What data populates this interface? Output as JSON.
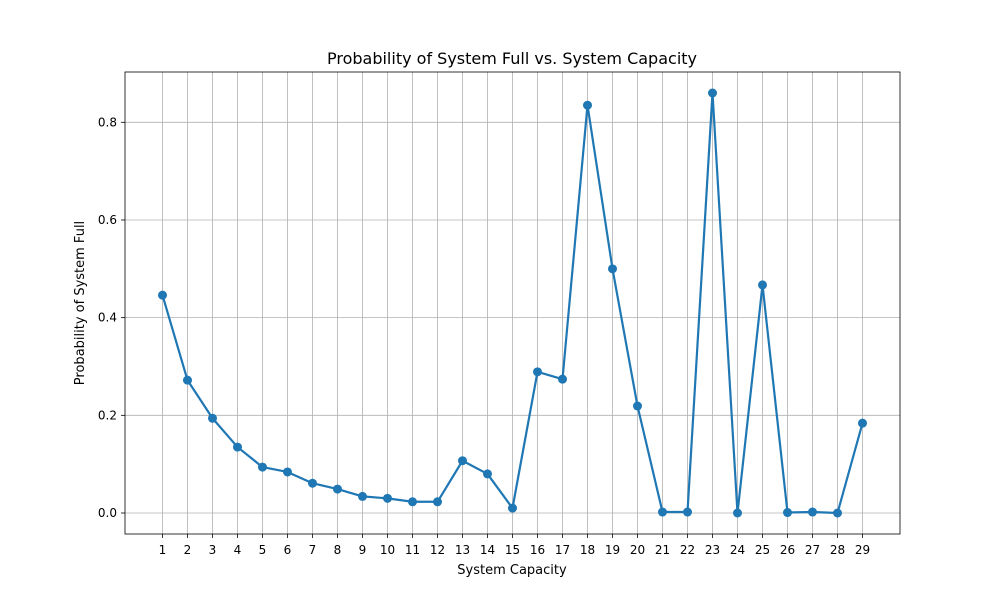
{
  "chart_data": {
    "type": "line",
    "title": "Probability of System Full vs. System Capacity",
    "xlabel": "System Capacity",
    "ylabel": "Probability of System Full",
    "x": [
      1,
      2,
      3,
      4,
      5,
      6,
      7,
      8,
      9,
      10,
      11,
      12,
      13,
      14,
      15,
      16,
      17,
      18,
      19,
      20,
      21,
      22,
      23,
      24,
      25,
      26,
      27,
      28,
      29
    ],
    "series": [
      {
        "values": [
          0.446,
          0.272,
          0.194,
          0.135,
          0.094,
          0.084,
          0.061,
          0.049,
          0.034,
          0.03,
          0.023,
          0.023,
          0.107,
          0.08,
          0.01,
          0.289,
          0.274,
          0.835,
          0.5,
          0.219,
          0.002,
          0.002,
          0.86,
          0.0,
          0.467,
          0.001,
          0.002,
          0.0,
          0.184
        ],
        "color": "#1f77b4",
        "marker": "circle"
      }
    ],
    "xlim": [
      -0.5,
      30.5
    ],
    "ylim": [
      -0.043,
      0.903
    ],
    "yticks": [
      0.0,
      0.2,
      0.4,
      0.6,
      0.8
    ],
    "ytick_labels": [
      "0.0",
      "0.2",
      "0.4",
      "0.6",
      "0.8"
    ],
    "grid": true
  }
}
